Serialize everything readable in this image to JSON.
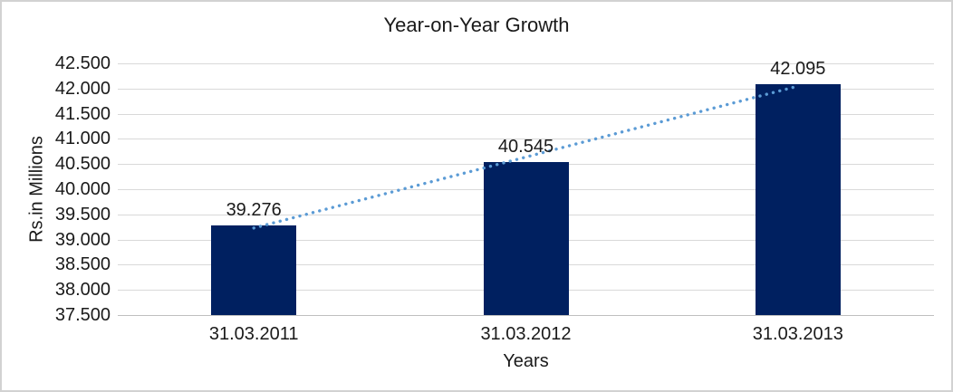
{
  "chart_data": {
    "type": "bar",
    "title": "Year-on-Year Growth",
    "xlabel": "Years",
    "ylabel": "Rs.in Millions",
    "categories": [
      "31.03.2011",
      "31.03.2012",
      "31.03.2013"
    ],
    "values": [
      39276,
      40545,
      42095
    ],
    "data_labels": [
      "39.276",
      "40.545",
      "42.095"
    ],
    "ylim": [
      37500,
      42500
    ],
    "y_tick_step": 500,
    "y_tick_labels": [
      "37.500",
      "38.000",
      "38.500",
      "39.000",
      "39.500",
      "40.000",
      "40.500",
      "41.000",
      "41.500",
      "42.000",
      "42.500"
    ],
    "grid": true,
    "legend": "none",
    "trendline": {
      "type": "linear",
      "style": "dotted"
    }
  },
  "colors": {
    "bar": "#002060",
    "trendline": "#5B9BD5",
    "gridline": "#D9D9D9",
    "axis_line": "#BFBFBF",
    "text": "#1A1A1A",
    "border": "#D2D2D2",
    "background": "#FFFFFF"
  }
}
